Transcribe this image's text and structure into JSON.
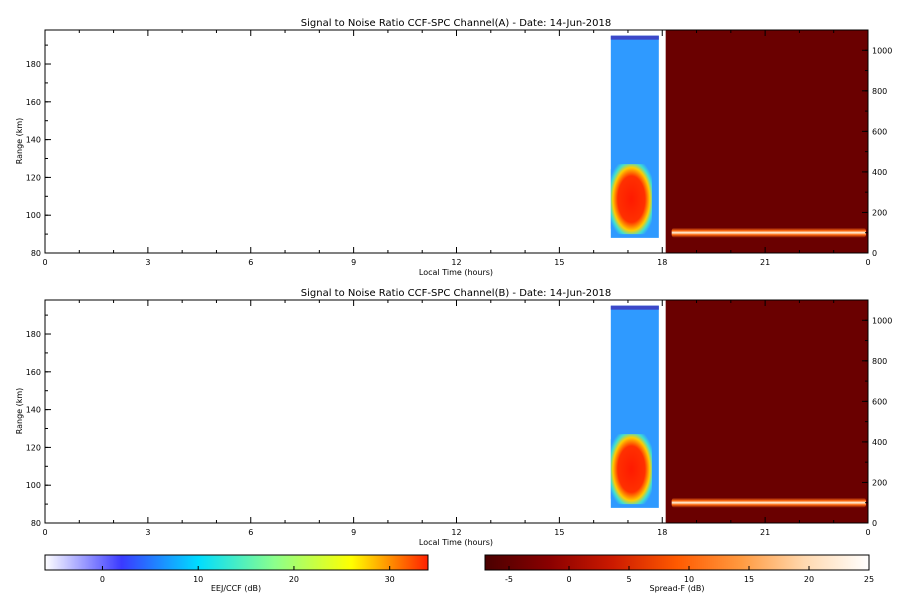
{
  "chart_data": [
    {
      "type": "heatmap",
      "title": "Signal to Noise Ratio CCF-SPC Channel(A) - Date: 14-Jun-2018",
      "xlabel": "Local Time (hours)",
      "ylabel": "Range (km)",
      "x_ticks": [
        "0",
        "3",
        "6",
        "9",
        "12",
        "15",
        "18",
        "21",
        "0"
      ],
      "xlim": [
        0,
        24
      ],
      "ylim": [
        80,
        198
      ],
      "y_ticks": [
        80,
        100,
        120,
        140,
        160,
        180
      ],
      "y2lim": [
        0,
        1100
      ],
      "y2_ticks": [
        0,
        200,
        400,
        600,
        800,
        1000
      ],
      "eej_ccf_block": {
        "x_start": 16.5,
        "x_end": 17.9,
        "y_start": 88,
        "y_end": 195
      },
      "eej_core": {
        "x_start": 16.5,
        "x_end": 17.7,
        "y_start": 90,
        "y_end": 127
      },
      "spread_f_block": {
        "x_start": 18.1,
        "x_end": 24,
        "layer_height": 100
      }
    },
    {
      "type": "heatmap",
      "title": "Signal to Noise Ratio CCF-SPC Channel(B) - Date: 14-Jun-2018",
      "xlabel": "Local Time (hours)",
      "ylabel": "Range (km)",
      "x_ticks": [
        "0",
        "3",
        "6",
        "9",
        "12",
        "15",
        "18",
        "21",
        "0"
      ],
      "xlim": [
        0,
        24
      ],
      "ylim": [
        80,
        198
      ],
      "y_ticks": [
        80,
        100,
        120,
        140,
        160,
        180
      ],
      "y2lim": [
        0,
        1100
      ],
      "y2_ticks": [
        0,
        200,
        400,
        600,
        800,
        1000
      ],
      "eej_ccf_block": {
        "x_start": 16.5,
        "x_end": 17.9,
        "y_start": 88,
        "y_end": 195
      },
      "eej_core": {
        "x_start": 16.5,
        "x_end": 17.7,
        "y_start": 90,
        "y_end": 127
      },
      "spread_f_block": {
        "x_start": 18.1,
        "x_end": 24,
        "layer_height": 100
      }
    }
  ],
  "colorbars": [
    {
      "label": "EEJ/CCF (dB)",
      "range": [
        -6,
        34
      ],
      "ticks": [
        0,
        10,
        20,
        30
      ],
      "colors": [
        "#ffffff",
        "#3a3aff",
        "#00dcff",
        "#8cff8c",
        "#ffff00",
        "#ff2000"
      ]
    },
    {
      "label": "Spread-F (dB)",
      "range": [
        -7,
        25
      ],
      "ticks": [
        -5,
        0,
        5,
        10,
        15,
        20,
        25
      ],
      "colors": [
        "#4a0000",
        "#8a0000",
        "#cc1a00",
        "#ff5a00",
        "#ff9a40",
        "#ffd9b0",
        "#ffffff"
      ]
    }
  ],
  "colors": {
    "eej_background": "#2f9aff",
    "eej_top": "#3c48c8",
    "spread_f_background": "#6a0000",
    "axis": "#000000"
  }
}
